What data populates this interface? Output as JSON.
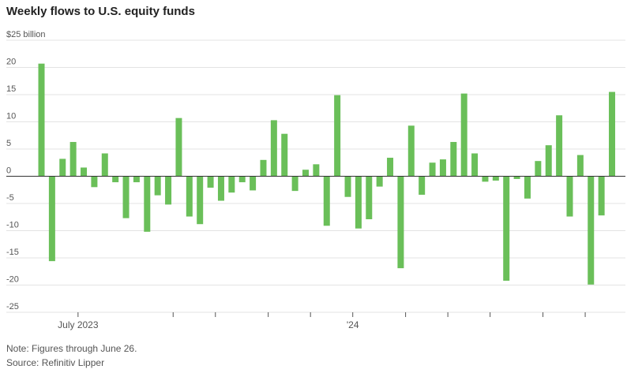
{
  "title": "Weekly flows to U.S. equity funds",
  "note": "Note: Figures through June 26.",
  "source": "Source: Refinitiv Lipper",
  "colors": {
    "bar": "#6abf59",
    "grid": "#e3e3e3",
    "zero": "#333333",
    "label": "#555555"
  },
  "chart_data": {
    "type": "bar",
    "title": "Weekly flows to U.S. equity funds",
    "ylabel": "$ billion",
    "ylim": [
      -25,
      25
    ],
    "y_ticks": [
      {
        "value": 25,
        "label": "$25 billion"
      },
      {
        "value": 20,
        "label": "20"
      },
      {
        "value": 15,
        "label": "15"
      },
      {
        "value": 10,
        "label": "10"
      },
      {
        "value": 5,
        "label": "5"
      },
      {
        "value": 0,
        "label": "0"
      },
      {
        "value": -5,
        "label": "-5"
      },
      {
        "value": -10,
        "label": "-10"
      },
      {
        "value": -15,
        "label": "-15"
      },
      {
        "value": -20,
        "label": "-20"
      },
      {
        "value": -25,
        "label": "-25"
      }
    ],
    "x_labels": [
      {
        "index": 3,
        "label": "July 2023"
      },
      {
        "index": 29,
        "label": "'24"
      }
    ],
    "x_tick_indices": [
      3,
      12,
      16,
      21,
      25,
      29,
      34,
      38,
      42,
      47,
      51
    ],
    "series": [
      {
        "name": "Weekly flows",
        "values": [
          20.7,
          -15.6,
          3.2,
          6.3,
          1.6,
          -2.0,
          4.2,
          -1.1,
          -7.7,
          -1.1,
          -10.2,
          -3.5,
          -5.2,
          10.7,
          -7.4,
          -8.8,
          -2.1,
          -4.5,
          -3.0,
          -1.1,
          -2.6,
          3.0,
          10.3,
          7.8,
          -2.7,
          1.2,
          2.2,
          -9.1,
          14.9,
          -3.8,
          -9.6,
          -7.9,
          -1.9,
          3.4,
          -16.9,
          9.3,
          -3.4,
          2.5,
          3.1,
          6.3,
          15.2,
          4.2,
          -1.0,
          -0.8,
          -19.2,
          -0.5,
          -4.1,
          2.8,
          5.7,
          11.2,
          -7.4,
          3.9,
          -19.9,
          -7.2,
          15.5
        ]
      }
    ]
  }
}
